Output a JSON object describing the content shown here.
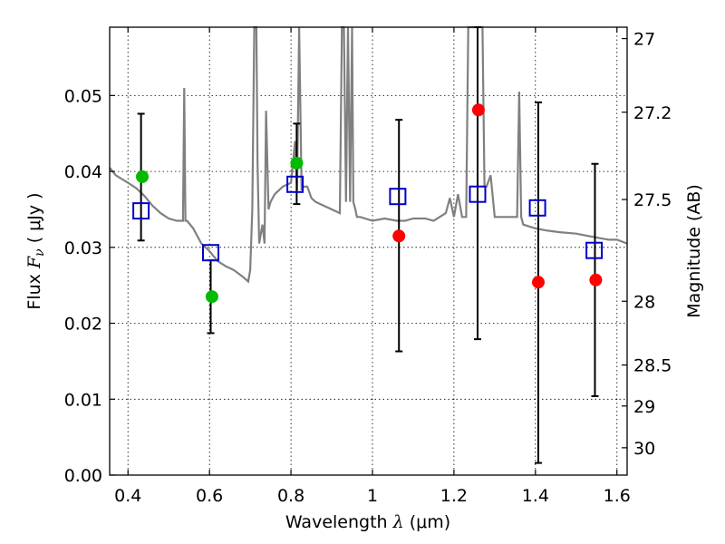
{
  "chart_data": {
    "type": "scatter",
    "xlabel": {
      "prefix": "Wavelength  ",
      "symbol": "λ",
      "units": " (μm)"
    },
    "ylabel": {
      "prefix": "Flux  ",
      "symbol": "F",
      "subscript": "ν",
      "units": "  ( μJy )"
    },
    "ylabel_right": "Magnitude (AB)",
    "xlim": [
      0.355,
      1.625
    ],
    "ylim": [
      0.0,
      0.059
    ],
    "x_ticks": [
      0.4,
      0.6,
      0.8,
      1.0,
      1.2,
      1.4,
      1.6
    ],
    "x_tick_labels": [
      "0.4",
      "0.6",
      "0.8",
      "1",
      "1.2",
      "1.4",
      "1.6"
    ],
    "y_ticks": [
      0.0,
      0.01,
      0.02,
      0.03,
      0.04,
      0.05
    ],
    "y_tick_labels": [
      "0.00",
      "0.01",
      "0.02",
      "0.03",
      "0.04",
      "0.05"
    ],
    "right_ticks": [
      {
        "label": "27",
        "flux": 0.0575
      },
      {
        "label": "27.2",
        "flux": 0.0478
      },
      {
        "label": "27.5",
        "flux": 0.0363
      },
      {
        "label": "28",
        "flux": 0.0229
      },
      {
        "label": "28.5",
        "flux": 0.0145
      },
      {
        "label": "29",
        "flux": 0.0091
      },
      {
        "label": "30",
        "flux": 0.0036
      }
    ],
    "grid": true,
    "series": [
      {
        "kind": "observed-flux-green",
        "color": "#00bb00",
        "x": [
          0.435,
          0.606,
          0.814
        ],
        "y": [
          0.0393,
          0.0235,
          0.0411
        ]
      },
      {
        "kind": "observed-flux-red",
        "color": "#ff0000",
        "x": [
          1.065,
          1.26,
          1.407,
          1.548
        ],
        "y": [
          0.0315,
          0.0481,
          0.0254,
          0.0257
        ]
      },
      {
        "kind": "model-flux-squares",
        "color": "#0000cc",
        "x": [
          0.432,
          0.603,
          0.81,
          1.062,
          1.258,
          1.405,
          1.544
        ],
        "y": [
          0.0348,
          0.0293,
          0.0383,
          0.0367,
          0.037,
          0.0352,
          0.0296
        ]
      },
      {
        "kind": "error-bars",
        "color": "#000000",
        "x": [
          0.432,
          0.603,
          0.814,
          1.065,
          1.258,
          1.407,
          1.546
        ],
        "low": [
          0.0309,
          0.0187,
          0.0357,
          0.0163,
          0.0179,
          0.0016,
          0.0104
        ],
        "high": [
          0.0476,
          0.0283,
          0.0463,
          0.0468,
          0.059,
          0.0491,
          0.041
        ]
      },
      {
        "kind": "model-spectrum",
        "color": "#808080",
        "x": [
          0.355,
          0.37,
          0.385,
          0.4,
          0.42,
          0.44,
          0.46,
          0.48,
          0.5,
          0.52,
          0.535,
          0.538,
          0.541,
          0.545,
          0.56,
          0.58,
          0.6,
          0.62,
          0.64,
          0.66,
          0.68,
          0.695,
          0.7,
          0.705,
          0.71,
          0.712,
          0.715,
          0.718,
          0.722,
          0.73,
          0.735,
          0.739,
          0.745,
          0.75,
          0.76,
          0.78,
          0.8,
          0.81,
          0.815,
          0.82,
          0.826,
          0.83,
          0.84,
          0.85,
          0.86,
          0.88,
          0.9,
          0.92,
          0.925,
          0.93,
          0.935,
          0.94,
          0.945,
          0.95,
          0.953,
          0.958,
          0.962,
          0.97,
          1.0,
          1.03,
          1.06,
          1.08,
          1.1,
          1.13,
          1.15,
          1.18,
          1.19,
          1.2,
          1.21,
          1.22,
          1.23,
          1.235,
          1.24,
          1.245,
          1.25,
          1.26,
          1.265,
          1.27,
          1.275,
          1.28,
          1.29,
          1.3,
          1.32,
          1.34,
          1.355,
          1.36,
          1.365,
          1.37,
          1.4,
          1.43,
          1.46,
          1.5,
          1.53,
          1.56,
          1.58,
          1.6,
          1.625
        ],
        "y": [
          0.0405,
          0.0395,
          0.039,
          0.0385,
          0.0378,
          0.0368,
          0.0355,
          0.0345,
          0.0338,
          0.0335,
          0.0335,
          0.051,
          0.0335,
          0.0335,
          0.0325,
          0.0305,
          0.0295,
          0.0282,
          0.0275,
          0.027,
          0.0262,
          0.0255,
          0.027,
          0.035,
          0.059,
          0.059,
          0.059,
          0.041,
          0.0305,
          0.033,
          0.0305,
          0.048,
          0.035,
          0.036,
          0.037,
          0.038,
          0.0385,
          0.044,
          0.0375,
          0.059,
          0.0375,
          0.038,
          0.038,
          0.0365,
          0.036,
          0.0355,
          0.035,
          0.0345,
          0.059,
          0.059,
          0.036,
          0.059,
          0.036,
          0.059,
          0.036,
          0.035,
          0.034,
          0.034,
          0.0335,
          0.0338,
          0.0335,
          0.0335,
          0.0338,
          0.0338,
          0.0335,
          0.0345,
          0.0365,
          0.034,
          0.037,
          0.034,
          0.034,
          0.059,
          0.059,
          0.059,
          0.059,
          0.059,
          0.059,
          0.059,
          0.038,
          0.038,
          0.0395,
          0.034,
          0.034,
          0.034,
          0.034,
          0.0505,
          0.034,
          0.033,
          0.0325,
          0.0322,
          0.032,
          0.0318,
          0.0315,
          0.0312,
          0.031,
          0.031,
          0.0305
        ]
      }
    ]
  }
}
